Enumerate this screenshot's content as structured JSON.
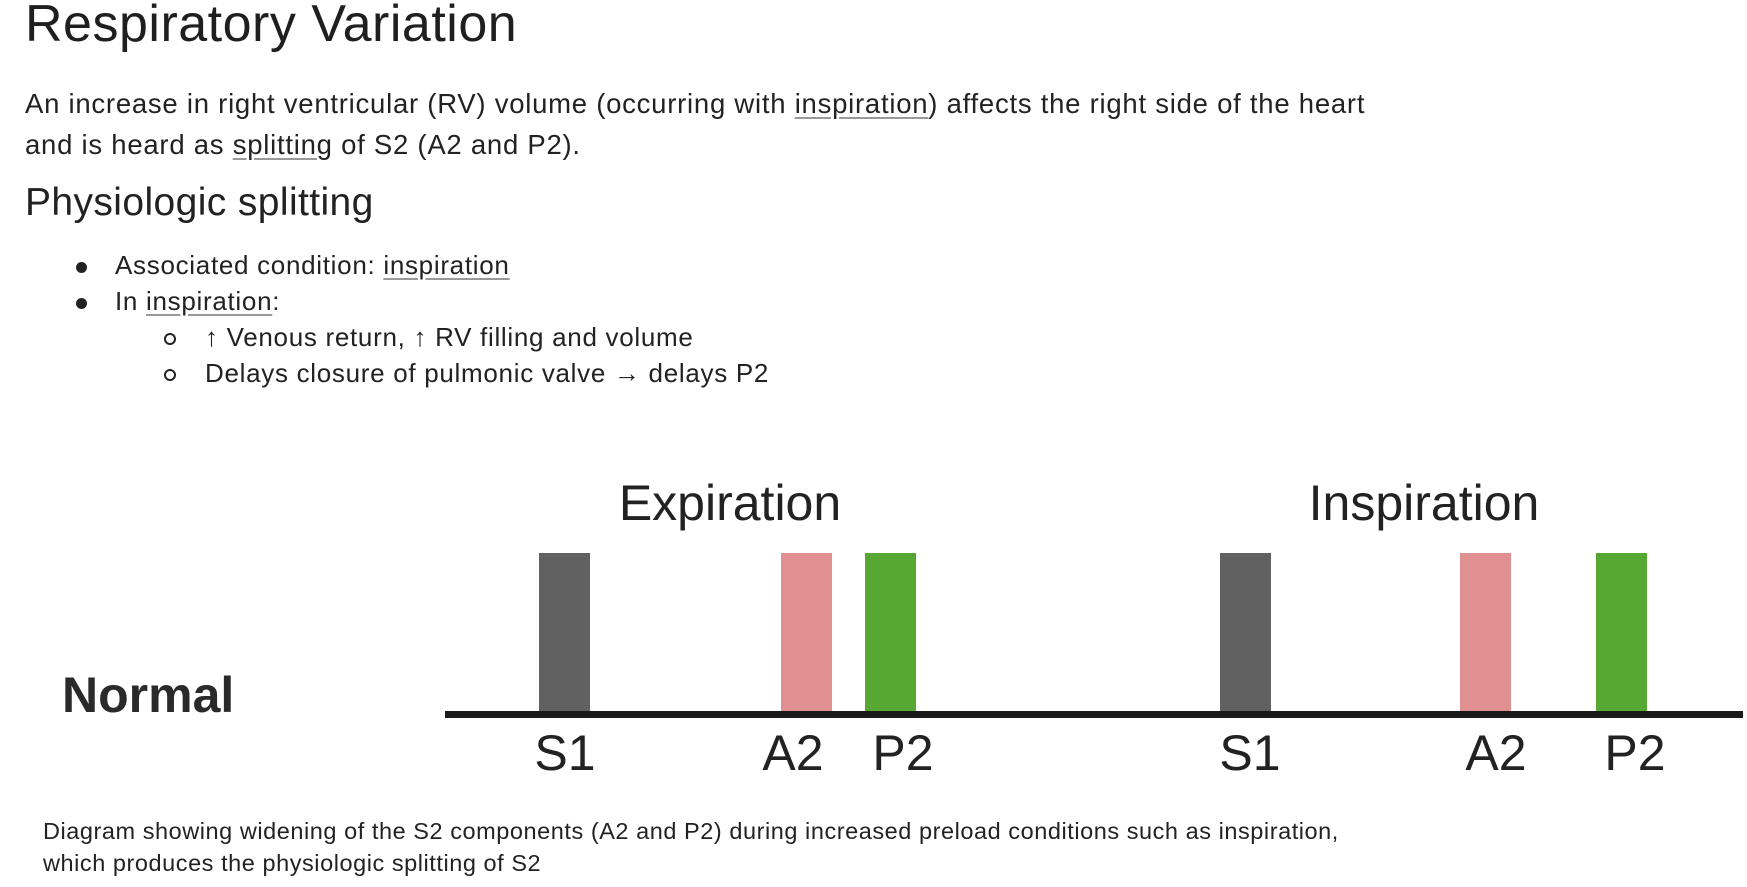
{
  "title": "Respiratory Variation",
  "intro": {
    "line1_a": "An increase in right ventricular (RV) volume (occurring with ",
    "line1_link": "inspiration",
    "line1_b": ") affects the right side of the heart",
    "line2_a": "and is heard as ",
    "line2_link": "splitting",
    "line2_b": " of S2 (A2 and P2)."
  },
  "section": {
    "heading": "Physiologic splitting",
    "bullets": [
      {
        "prefix": "Associated condition: ",
        "link": "inspiration",
        "suffix": ""
      },
      {
        "prefix": "In ",
        "link": "inspiration",
        "suffix": ":"
      }
    ],
    "sub_bullets": [
      "↑ Venous return, ↑ RV filling and volume",
      "Delays closure of pulmonic valve → delays P2"
    ]
  },
  "diagram": {
    "row_label": "Normal",
    "phases": [
      {
        "title": "Expiration",
        "labels": [
          "S1",
          "A2",
          "P2"
        ]
      },
      {
        "title": "Inspiration",
        "labels": [
          "S1",
          "A2",
          "P2"
        ]
      }
    ],
    "colors": {
      "S1": "#616161",
      "A2": "#e09090",
      "P2": "#56a832"
    }
  },
  "caption": {
    "line1": "Diagram showing widening of the S2 components (A2 and P2) during increased preload conditions such as inspiration,",
    "line2": "which produces the physiologic splitting of S2"
  }
}
